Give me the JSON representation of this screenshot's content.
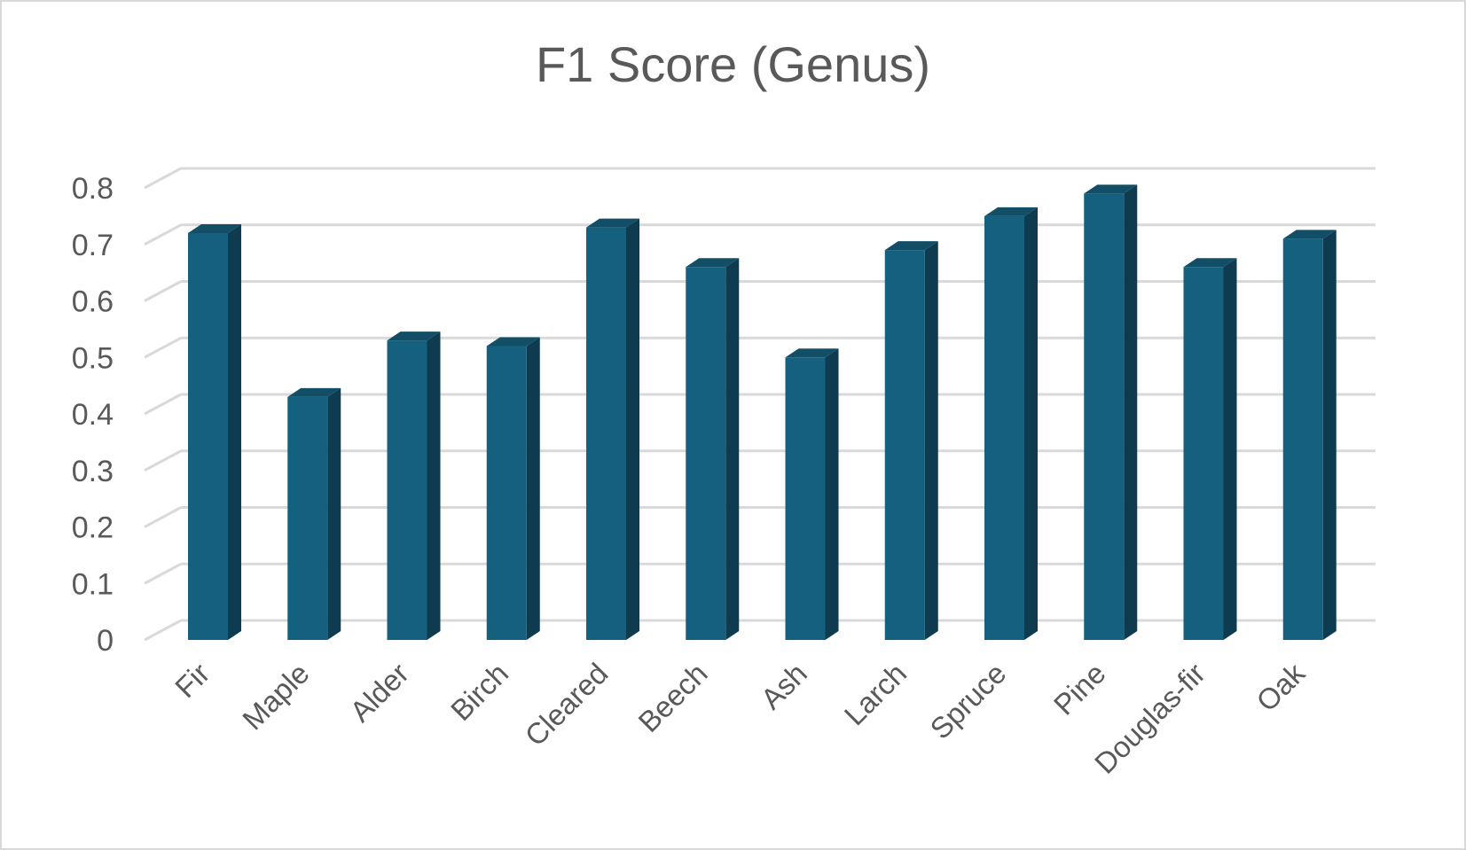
{
  "chart_data": {
    "type": "bar",
    "title": "F1 Score (Genus)",
    "categories": [
      "Fir",
      "Maple",
      "Alder",
      "Birch",
      "Cleared",
      "Beech",
      "Ash",
      "Larch",
      "Spruce",
      "Pine",
      "Douglas-fir",
      "Oak"
    ],
    "values": [
      0.72,
      0.43,
      0.53,
      0.52,
      0.73,
      0.66,
      0.5,
      0.69,
      0.75,
      0.79,
      0.66,
      0.71
    ],
    "yticks": [
      "0",
      "0.1",
      "0.2",
      "0.3",
      "0.4",
      "0.5",
      "0.6",
      "0.7",
      "0.8"
    ],
    "ylim": [
      0,
      0.8
    ],
    "grid": true,
    "style": "3d-column",
    "colors": {
      "front": "#16607f",
      "side": "#0e3b4f",
      "top": "#124e66",
      "grid": "#d9d9d9",
      "text": "#595959"
    }
  }
}
